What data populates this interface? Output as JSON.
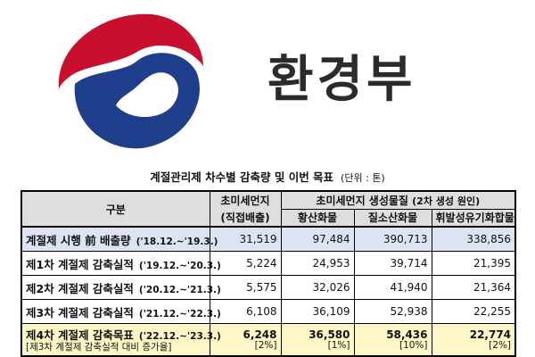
{
  "logo": {
    "name": "taegeuk-logo",
    "colors": {
      "red": "#c8102e",
      "blue": "#1f3e8c"
    }
  },
  "ministry_name": "환경부",
  "table_title": {
    "main": "계절관리제 차수별 감축량 및 이번 목표",
    "unit": "(단위 : 톤)"
  },
  "headers": {
    "category": "구분",
    "fine_dust": "초미세먼지",
    "fine_dust_sub": "(직접배출)",
    "precursors": "초미세먼지 생성물질",
    "precursors_sub": "(2차 생성 원인)",
    "sox": "황산화물",
    "nox": "질소산화물",
    "voc": "휘발성유기화합물"
  },
  "rows": [
    {
      "label": "계절제 시행 前 배출량",
      "period": "('18.12.~'19.3.)",
      "fine_dust": "31,519",
      "sox": "97,484",
      "nox": "390,713",
      "voc": "338,856"
    },
    {
      "label": "제1차 계절제 감축실적",
      "period": "('19.12.~'20.3.)",
      "fine_dust": "5,224",
      "sox": "24,953",
      "nox": "39,714",
      "voc": "21,395"
    },
    {
      "label": "제2차 계절제 감축실적",
      "period": "('20.12.~'21.3.)",
      "fine_dust": "5,575",
      "sox": "32,026",
      "nox": "41,940",
      "voc": "21,364"
    },
    {
      "label": "제3차 계절제 감축실적",
      "period": "('21.12.~'22.3.)",
      "fine_dust": "6,108",
      "sox": "36,109",
      "nox": "52,938",
      "voc": "22,255"
    }
  ],
  "target": {
    "label": "제4차 계절제 감축목표",
    "period": "('22.12.~'23.3.)",
    "note": "[제3차 계절제 감축실적 대비 증가율]",
    "fine_dust": "6,248",
    "fine_dust_pct": "[2%]",
    "sox": "36,580",
    "sox_pct": "[1%]",
    "nox": "58,436",
    "nox_pct": "[10%]",
    "voc": "22,774",
    "voc_pct": "[2%]"
  }
}
